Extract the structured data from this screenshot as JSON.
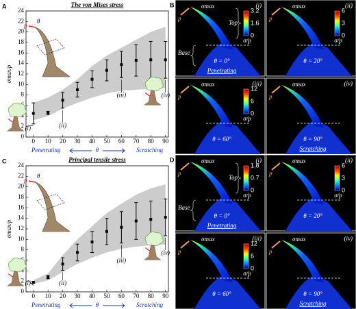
{
  "chart_data": [
    {
      "type": "errorbar",
      "panel_label": "A",
      "title": "The von Mises stress",
      "y_label": "σmax/p",
      "x_label": "θ",
      "direction_left": "Penetrating",
      "direction_right": "Scratching",
      "inset_labels": [
        "p",
        "θ"
      ],
      "x": [
        0,
        10,
        20,
        30,
        40,
        50,
        60,
        70,
        80,
        90
      ],
      "values": [
        4.5,
        4.6,
        7,
        9,
        11,
        12.7,
        13.8,
        14.6,
        14.7,
        14.7
      ],
      "errors": [
        2,
        0.3,
        1.5,
        1.4,
        1.6,
        2,
        2.5,
        3,
        3.5,
        3.5
      ],
      "band": {
        "lower": [
          3.2,
          4,
          5.4,
          6.5,
          7.5,
          8.3,
          8.8,
          9,
          9.2,
          9.3
        ],
        "upper": [
          6.5,
          7.5,
          9,
          11,
          13.5,
          15.5,
          17,
          18.5,
          20,
          21
        ]
      },
      "color": "#000000",
      "band_color": "#cccccc",
      "xlim": [
        -5,
        92
      ],
      "ylim": [
        0,
        24
      ],
      "xticks": [
        0,
        10,
        20,
        30,
        40,
        50,
        60,
        70,
        80,
        90
      ],
      "yticks": [
        0,
        2,
        4,
        6,
        8,
        10,
        12,
        14,
        16,
        18,
        20,
        22,
        24
      ],
      "annotations": [
        "(i)",
        "(ii)",
        "(iii)",
        "(iv)"
      ]
    },
    {
      "type": "errorbar",
      "panel_label": "C",
      "title": "Principal tensile stress",
      "y_label": "σmax/p",
      "x_label": "θ",
      "direction_left": "Penetrating",
      "direction_right": "Scratching",
      "inset_labels": [
        "p",
        "θ"
      ],
      "x": [
        0,
        10,
        20,
        30,
        40,
        50,
        60,
        70,
        80,
        90
      ],
      "values": [
        1.8,
        2.8,
        5.3,
        7.5,
        9.5,
        11.5,
        12.3,
        13.5,
        13.8,
        14.2
      ],
      "errors": [
        0.2,
        0.3,
        1.2,
        1.6,
        2,
        2.5,
        3,
        3.5,
        3.5,
        3.5
      ],
      "band": {
        "lower": [
          1.5,
          2.2,
          3.8,
          5.3,
          6.5,
          7.5,
          8.2,
          8.6,
          8.9,
          9
        ],
        "upper": [
          2.2,
          3.5,
          7,
          10,
          12.5,
          15,
          16.8,
          18.5,
          19.7,
          20.5
        ]
      },
      "color": "#000000",
      "band_color": "#cccccc",
      "xlim": [
        -5,
        92
      ],
      "ylim": [
        0,
        24
      ],
      "xticks": [
        0,
        10,
        20,
        30,
        40,
        50,
        60,
        70,
        80,
        90
      ],
      "yticks": [
        0,
        2,
        4,
        6,
        8,
        10,
        12,
        14,
        16,
        18,
        20,
        22,
        24
      ],
      "annotations": [
        "(i)",
        "(ii)",
        "(iii)",
        "(iv)"
      ]
    }
  ],
  "panels": [
    {
      "label": "B",
      "subpanels": [
        {
          "index": "(i)",
          "sigma": "σmax",
          "p": "p",
          "theta": "θ = 0°",
          "colorbar": [
            "3.2",
            "1.6",
            "0"
          ],
          "unit": "σ/p",
          "mode": "Penetrating",
          "top": "Top",
          "base": "Base"
        },
        {
          "index": "(ii)",
          "sigma": "σmax",
          "p": "p",
          "theta": "θ = 20°",
          "colorbar": [
            "6",
            "3",
            "0"
          ],
          "unit": "σ/p"
        },
        {
          "index": "(iii)",
          "sigma": "σmax",
          "p": "p",
          "theta": "θ = 60°",
          "colorbar": [
            "12",
            "6",
            "0"
          ],
          "unit": "σ/p"
        },
        {
          "index": "(iv)",
          "sigma": "σmax",
          "p": "p",
          "theta": "θ = 90°",
          "mode": "Scratching"
        }
      ]
    },
    {
      "label": "D",
      "subpanels": [
        {
          "index": "(i)",
          "sigma": "σmax",
          "p": "p",
          "theta": "θ = 0°",
          "colorbar": [
            "1.8",
            "0.7",
            "0"
          ],
          "unit": "σ/p",
          "mode": "Penetrating",
          "top": "Top",
          "base": "Base"
        },
        {
          "index": "(ii)",
          "sigma": "σmax",
          "p": "p",
          "theta": "θ = 20°",
          "colorbar": [
            "6",
            "3",
            "0"
          ],
          "unit": "σ/p"
        },
        {
          "index": "(iii)",
          "sigma": "σmax",
          "p": "p",
          "theta": "θ = 60°",
          "colorbar": [
            "12",
            "6",
            "0"
          ],
          "unit": "σ/p"
        },
        {
          "index": "(iv)",
          "sigma": "σmax",
          "p": "p",
          "theta": "θ = 90°",
          "mode": "Scratching"
        }
      ]
    }
  ]
}
